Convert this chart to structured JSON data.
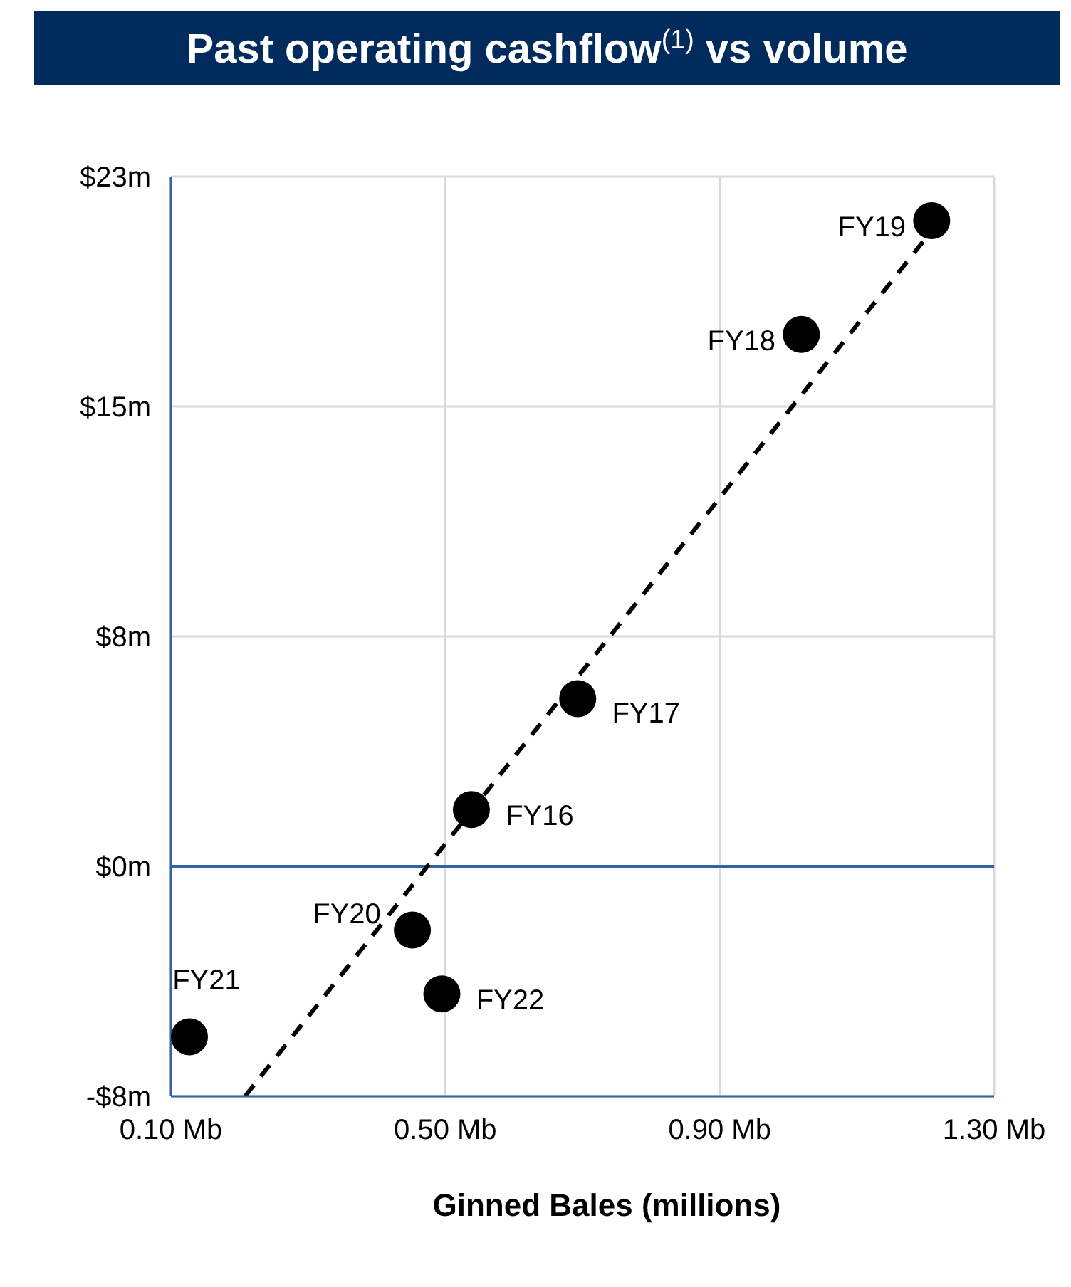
{
  "chart_data": {
    "type": "scatter",
    "title": "Past operating cashflow$^{(1)}$ vs volume",
    "xlabel": "Ginned Bales (millions)",
    "xlim": [
      0.1,
      1.3
    ],
    "xticks": [
      {
        "value": 0.1,
        "label": "0.10 Mb"
      },
      {
        "value": 0.5,
        "label": "0.50 Mb"
      },
      {
        "value": 0.9,
        "label": "0.90 Mb"
      },
      {
        "value": 1.3,
        "label": "1.30 Mb"
      }
    ],
    "ylim": [
      -7.5,
      22.5
    ],
    "yticks": [
      {
        "value": -7.5,
        "label": "-$8m"
      },
      {
        "value": 0,
        "label": "$0m"
      },
      {
        "value": 7.5,
        "label": "$8m"
      },
      {
        "value": 15,
        "label": "$15m"
      },
      {
        "value": 22.5,
        "label": "$23m"
      }
    ],
    "grid": true,
    "marker": "circle",
    "series": [
      {
        "color": "#000000",
        "x": [
          1.209,
          1.019,
          0.693,
          0.538,
          0.452,
          0.495,
          0.127
        ],
        "values": [
          21.06,
          17.35,
          5.47,
          1.85,
          -2.08,
          -4.16,
          -5.56
        ]
      },
      {
        "type": "line",
        "color": "#000000",
        "line_style": "dashed",
        "marker": "none",
        "x": [
          0.208,
          1.215
        ],
        "values": [
          -7.5,
          20.9
        ]
      }
    ],
    "ref_lines": [
      {
        "axis": "y",
        "value": 0,
        "color": "#2e64a6"
      }
    ],
    "annotations": [
      {
        "text": "FY19",
        "x": 1.209,
        "y": 21.06
      },
      {
        "text": "FY18",
        "x": 1.019,
        "y": 17.35
      },
      {
        "text": "FY17",
        "x": 0.693,
        "y": 5.47
      },
      {
        "text": "FY16",
        "x": 0.538,
        "y": 1.85
      },
      {
        "text": "FY20",
        "x": 0.452,
        "y": -2.08
      },
      {
        "text": "FY22",
        "x": 0.495,
        "y": -4.16
      },
      {
        "text": "FY21",
        "x": 0.127,
        "y": -5.56
      }
    ]
  }
}
